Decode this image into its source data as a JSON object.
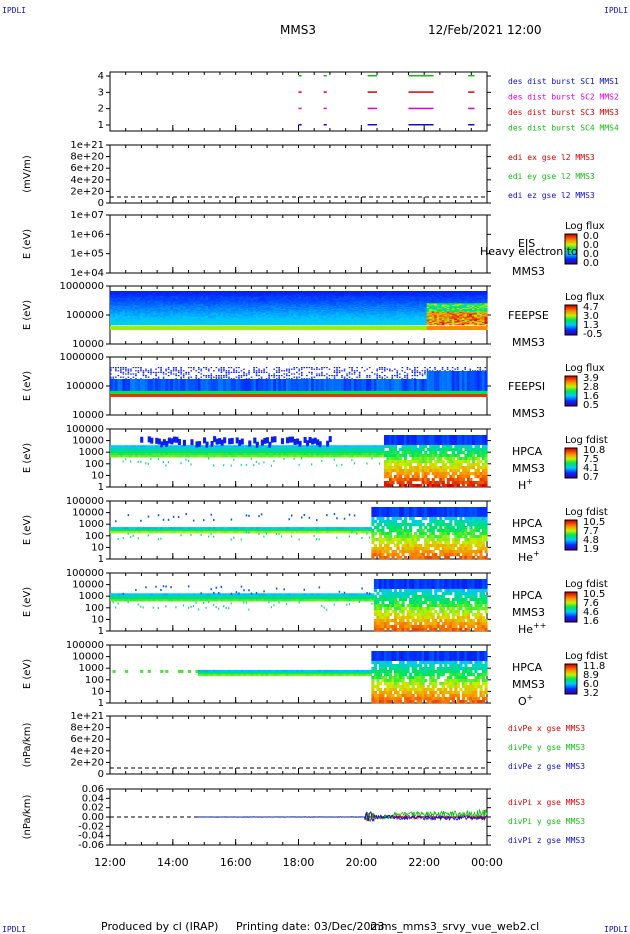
{
  "corner_labels": {
    "top_left": "IPDLI",
    "top_right": "IPDLI",
    "bottom_left": "IPDLI",
    "bottom_right": "IPDLI"
  },
  "header": {
    "title": "MMS3",
    "datetime": "12/Feb/2021 12:00"
  },
  "footer": {
    "credit": "Produced by cl (IRAP)",
    "printing_date": "Printing date: 03/Dec/2023",
    "script": "mms_mms3_srvy_vue_web2.cl"
  },
  "colors": {
    "blue": "#1010c8",
    "red": "#e00000",
    "green": "#10c010",
    "magenta": "#e000e0"
  },
  "chart_data": {
    "type": "multi-panel time series",
    "x_ticks": [
      "12:00",
      "14:00",
      "16:00",
      "18:00",
      "20:00",
      "22:00",
      "00:00"
    ],
    "x_range_hours": [
      12,
      24
    ],
    "panels": [
      {
        "id": "des_dist",
        "ylabel": "",
        "yticks": [
          "4",
          "3",
          "2",
          "1"
        ],
        "legend": [
          {
            "text": "des dist burst SC1 MMS1",
            "color": "#1010c8"
          },
          {
            "text": "des dist burst SC2 MMS2",
            "color": "#e000e0"
          },
          {
            "text": "des dist burst SC3 MMS3",
            "color": "#e00000"
          },
          {
            "text": "des dist burst SC4 MMS4",
            "color": "#10c010"
          }
        ],
        "burst_intervals_hours": [
          [
            18.0,
            18.1
          ],
          [
            18.8,
            18.9
          ],
          [
            20.2,
            20.5
          ],
          [
            21.5,
            22.3
          ],
          [
            23.4,
            23.6
          ]
        ]
      },
      {
        "id": "edi",
        "ylabel": "(mV/m)",
        "yticks": [
          "1e+21",
          "8e+20",
          "6e+20",
          "4e+20",
          "2e+20",
          "0"
        ],
        "legend": [
          {
            "text": "edi ex gse l2 MMS3",
            "color": "#e00000"
          },
          {
            "text": "edi ey gse l2 MMS3",
            "color": "#10c010"
          },
          {
            "text": "edi ez gse l2 MMS3",
            "color": "#1010c8"
          }
        ]
      },
      {
        "id": "eis",
        "ylabel": "E (eV)",
        "yticks": [
          "1e+07",
          "1e+06",
          "1e+05",
          "1e+04"
        ],
        "labels": [
          "EIS",
          "Heavy electron to",
          "MMS3"
        ],
        "colorbar": {
          "title": "Log flux",
          "ticks": [
            "0.0",
            "0.0",
            "0.0",
            "0.0"
          ]
        }
      },
      {
        "id": "feepse",
        "ylabel": "E (eV)",
        "yticks": [
          "1000000",
          "100000",
          "10000"
        ],
        "labels": [
          "FEEPSE",
          "MMS3"
        ],
        "colorbar": {
          "title": "Log flux",
          "ticks": [
            "4.7",
            "3.0",
            "1.3",
            "-0.5"
          ]
        }
      },
      {
        "id": "feepsi",
        "ylabel": "E (eV)",
        "yticks": [
          "1000000",
          "100000",
          "10000"
        ],
        "labels": [
          "FEEPSI",
          "MMS3"
        ],
        "colorbar": {
          "title": "Log flux",
          "ticks": [
            "3.9",
            "2.8",
            "1.6",
            "0.5"
          ]
        }
      },
      {
        "id": "hpca_h",
        "ylabel": "E (eV)",
        "yticks": [
          "100000",
          "10000",
          "1000",
          "100",
          "10",
          "1"
        ],
        "labels": [
          "HPCA",
          "MMS3",
          "H+"
        ],
        "colorbar": {
          "title": "Log fdist",
          "ticks": [
            "10.8",
            "7.5",
            "4.1",
            "0.7"
          ]
        }
      },
      {
        "id": "hpca_he1",
        "ylabel": "E (eV)",
        "yticks": [
          "100000",
          "10000",
          "1000",
          "100",
          "10",
          "1"
        ],
        "labels": [
          "HPCA",
          "MMS3",
          "He+"
        ],
        "colorbar": {
          "title": "Log fdist",
          "ticks": [
            "10.5",
            "7.7",
            "4.8",
            "1.9"
          ]
        }
      },
      {
        "id": "hpca_he2",
        "ylabel": "E (eV)",
        "yticks": [
          "100000",
          "10000",
          "1000",
          "100",
          "10",
          "1"
        ],
        "labels": [
          "HPCA",
          "MMS3",
          "He++"
        ],
        "colorbar": {
          "title": "Log fdist",
          "ticks": [
            "10.5",
            "7.6",
            "4.6",
            "1.6"
          ]
        }
      },
      {
        "id": "hpca_o",
        "ylabel": "E (eV)",
        "yticks": [
          "100000",
          "10000",
          "1000",
          "100",
          "10",
          "1"
        ],
        "labels": [
          "HPCA",
          "MMS3",
          "O+"
        ],
        "colorbar": {
          "title": "Log fdist",
          "ticks": [
            "11.8",
            "8.9",
            "6.0",
            "3.2"
          ]
        }
      },
      {
        "id": "divpe",
        "ylabel": "(nPa/km)",
        "yticks": [
          "1e+21",
          "8e+20",
          "6e+20",
          "4e+20",
          "2e+20",
          "0"
        ],
        "legend": [
          {
            "text": "divPe x gse MMS3",
            "color": "#e00000"
          },
          {
            "text": "divPe y gse MMS3",
            "color": "#10c010"
          },
          {
            "text": "divPe z gse MMS3",
            "color": "#1010c8"
          }
        ]
      },
      {
        "id": "divpi",
        "ylabel": "(nPa/km)",
        "yticks": [
          "0.06",
          "0.04",
          "0.02",
          "0.00",
          "-0.02",
          "-0.04",
          "-0.06"
        ],
        "legend": [
          {
            "text": "divPi x gse MMS3",
            "color": "#e00000"
          },
          {
            "text": "divPi y gse MMS3",
            "color": "#10c010"
          },
          {
            "text": "divPi z gse MMS3",
            "color": "#1010c8"
          }
        ]
      }
    ]
  }
}
